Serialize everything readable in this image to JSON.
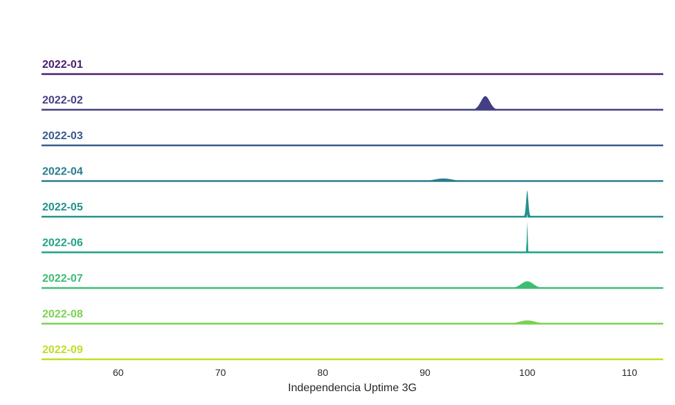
{
  "chart_data": {
    "type": "area",
    "title": "",
    "xlabel": "Independencia Uptime 3G",
    "ylabel": "",
    "xlim": [
      52.5,
      113.3
    ],
    "xticks": [
      60,
      70,
      80,
      90,
      100,
      110
    ],
    "grid": false,
    "legend": "none",
    "series": [
      {
        "name": "2022-01",
        "color": "#481c6e",
        "peaks": []
      },
      {
        "name": "2022-02",
        "color": "#433e85",
        "peaks": [
          {
            "x": 95.9,
            "height": 0.2,
            "width": 0.45
          }
        ]
      },
      {
        "name": "2022-03",
        "color": "#38598c",
        "peaks": []
      },
      {
        "name": "2022-04",
        "color": "#287d8e",
        "peaks": [
          {
            "x": 91.8,
            "height": 0.04,
            "width": 0.9
          }
        ]
      },
      {
        "name": "2022-05",
        "color": "#21918c",
        "peaks": [
          {
            "x": 100.0,
            "height": 0.4,
            "width": 0.12
          }
        ]
      },
      {
        "name": "2022-06",
        "color": "#1fa187",
        "peaks": [
          {
            "x": 100.0,
            "height": 0.55,
            "width": 0.05
          }
        ]
      },
      {
        "name": "2022-07",
        "color": "#3dbc74",
        "peaks": [
          {
            "x": 100.0,
            "height": 0.1,
            "width": 0.6
          }
        ]
      },
      {
        "name": "2022-08",
        "color": "#7ad151",
        "peaks": [
          {
            "x": 100.0,
            "height": 0.05,
            "width": 0.8
          }
        ]
      },
      {
        "name": "2022-09",
        "color": "#bddf26",
        "peaks": []
      }
    ]
  }
}
